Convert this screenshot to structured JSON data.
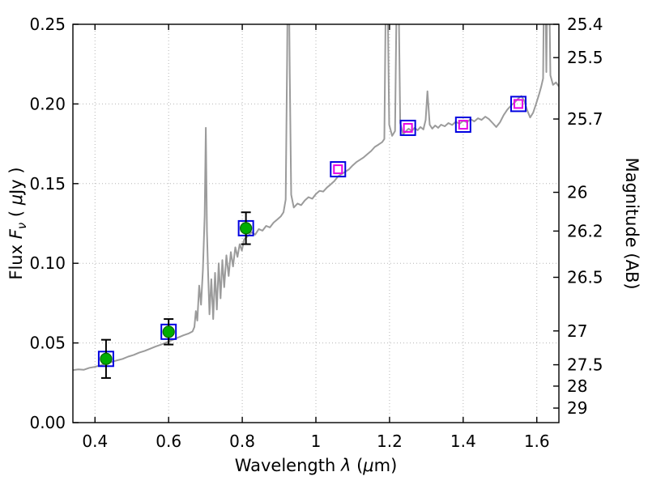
{
  "chart_data": {
    "type": "line",
    "title": "",
    "xlabel_parts": [
      {
        "t": "Wavelength  ",
        "s": "n"
      },
      {
        "t": "λ",
        "s": "i"
      },
      {
        "t": " (",
        "s": "n"
      },
      {
        "t": "μ",
        "s": "i"
      },
      {
        "t": "m)",
        "s": "n"
      }
    ],
    "ylabel_left_parts": [
      {
        "t": "Flux  ",
        "s": "n"
      },
      {
        "t": "F",
        "s": "i"
      },
      {
        "t": "ν",
        "s": "sub"
      },
      {
        "t": "  ( ",
        "s": "n"
      },
      {
        "t": "μ",
        "s": "i"
      },
      {
        "t": "Jy )",
        "s": "n"
      }
    ],
    "ylabel_right_parts": [
      {
        "t": "Magnitude (AB)",
        "s": "n"
      }
    ],
    "xlim": [
      0.34,
      1.66
    ],
    "ylim": [
      0,
      0.25
    ],
    "grid": "dotted",
    "x_ticks": [
      0.4,
      0.6,
      0.8,
      1.0,
      1.2,
      1.4,
      1.6
    ],
    "x_tick_labels": [
      "0.4",
      "0.6",
      "0.8",
      "1",
      "1.2",
      "1.4",
      "1.6"
    ],
    "y_ticks_left": [
      0.0,
      0.05,
      0.1,
      0.15,
      0.2,
      0.25
    ],
    "y_tick_labels_left": [
      "0.00",
      "0.05",
      "0.10",
      "0.15",
      "0.20",
      "0.25"
    ],
    "y_ticks_right_mag": [
      25.4,
      25.5,
      25.7,
      26,
      26.2,
      26.5,
      27,
      27.5,
      28,
      29
    ],
    "y_tick_labels_right": [
      "25.4",
      "25.5",
      "25.7",
      "26",
      "26.2",
      "26.5",
      "27",
      "27.5",
      "28",
      "29"
    ],
    "colors": {
      "spectrum": "#9b9b9b",
      "detection_fill": "#00ad00",
      "detection_edge": "#006600",
      "square_edge": "#0000e0",
      "inner_square_edge": "#e600e6",
      "error_bar": "#000000",
      "grid": "#b5b5b5",
      "frame": "#000000"
    },
    "photometry": [
      {
        "wavelength": 0.43,
        "flux": 0.04,
        "err": 0.012,
        "kind": "detection"
      },
      {
        "wavelength": 0.6,
        "flux": 0.057,
        "err": 0.008,
        "kind": "detection"
      },
      {
        "wavelength": 0.81,
        "flux": 0.122,
        "err": 0.01,
        "kind": "detection"
      },
      {
        "wavelength": 1.06,
        "flux": 0.159,
        "kind": "model"
      },
      {
        "wavelength": 1.25,
        "flux": 0.185,
        "kind": "model"
      },
      {
        "wavelength": 1.4,
        "flux": 0.187,
        "kind": "model"
      },
      {
        "wavelength": 1.55,
        "flux": 0.2,
        "kind": "model"
      }
    ],
    "spectrum_points": [
      [
        0.34,
        0.033
      ],
      [
        0.355,
        0.0334
      ],
      [
        0.37,
        0.0332
      ],
      [
        0.385,
        0.0344
      ],
      [
        0.4,
        0.035
      ],
      [
        0.415,
        0.036
      ],
      [
        0.43,
        0.0371
      ],
      [
        0.445,
        0.038
      ],
      [
        0.46,
        0.0391
      ],
      [
        0.475,
        0.04
      ],
      [
        0.49,
        0.0414
      ],
      [
        0.505,
        0.0425
      ],
      [
        0.52,
        0.0439
      ],
      [
        0.535,
        0.045
      ],
      [
        0.55,
        0.0464
      ],
      [
        0.565,
        0.0478
      ],
      [
        0.58,
        0.049
      ],
      [
        0.595,
        0.0504
      ],
      [
        0.61,
        0.0519
      ],
      [
        0.625,
        0.0533
      ],
      [
        0.64,
        0.0548
      ],
      [
        0.655,
        0.056
      ],
      [
        0.665,
        0.0572
      ],
      [
        0.67,
        0.06
      ],
      [
        0.674,
        0.07
      ],
      [
        0.678,
        0.064
      ],
      [
        0.683,
        0.086
      ],
      [
        0.688,
        0.074
      ],
      [
        0.693,
        0.096
      ],
      [
        0.698,
        0.13
      ],
      [
        0.701,
        0.185
      ],
      [
        0.704,
        0.12
      ],
      [
        0.707,
        0.096
      ],
      [
        0.711,
        0.068
      ],
      [
        0.716,
        0.09
      ],
      [
        0.721,
        0.065
      ],
      [
        0.726,
        0.094
      ],
      [
        0.731,
        0.071
      ],
      [
        0.736,
        0.1
      ],
      [
        0.741,
        0.078
      ],
      [
        0.746,
        0.102
      ],
      [
        0.751,
        0.085
      ],
      [
        0.757,
        0.105
      ],
      [
        0.763,
        0.092
      ],
      [
        0.769,
        0.107
      ],
      [
        0.775,
        0.098
      ],
      [
        0.781,
        0.11
      ],
      [
        0.787,
        0.104
      ],
      [
        0.793,
        0.112
      ],
      [
        0.799,
        0.108
      ],
      [
        0.805,
        0.115
      ],
      [
        0.815,
        0.117
      ],
      [
        0.825,
        0.1195
      ],
      [
        0.835,
        0.118
      ],
      [
        0.845,
        0.1215
      ],
      [
        0.855,
        0.1205
      ],
      [
        0.865,
        0.1235
      ],
      [
        0.875,
        0.1225
      ],
      [
        0.885,
        0.1255
      ],
      [
        0.895,
        0.1275
      ],
      [
        0.905,
        0.1295
      ],
      [
        0.912,
        0.132
      ],
      [
        0.918,
        0.14
      ],
      [
        0.922,
        0.23
      ],
      [
        0.925,
        0.32
      ],
      [
        0.929,
        0.22
      ],
      [
        0.933,
        0.143
      ],
      [
        0.94,
        0.135
      ],
      [
        0.95,
        0.1375
      ],
      [
        0.96,
        0.1365
      ],
      [
        0.97,
        0.1395
      ],
      [
        0.98,
        0.1415
      ],
      [
        0.99,
        0.1405
      ],
      [
        1.0,
        0.1435
      ],
      [
        1.01,
        0.1455
      ],
      [
        1.02,
        0.145
      ],
      [
        1.03,
        0.1475
      ],
      [
        1.04,
        0.1495
      ],
      [
        1.05,
        0.1515
      ],
      [
        1.06,
        0.1545
      ],
      [
        1.07,
        0.156
      ],
      [
        1.08,
        0.1575
      ],
      [
        1.09,
        0.159
      ],
      [
        1.1,
        0.1615
      ],
      [
        1.11,
        0.1635
      ],
      [
        1.12,
        0.165
      ],
      [
        1.13,
        0.1665
      ],
      [
        1.14,
        0.1685
      ],
      [
        1.15,
        0.1705
      ],
      [
        1.16,
        0.173
      ],
      [
        1.17,
        0.1745
      ],
      [
        1.18,
        0.176
      ],
      [
        1.186,
        0.178
      ],
      [
        1.192,
        0.32
      ],
      [
        1.199,
        0.187
      ],
      [
        1.207,
        0.18
      ],
      [
        1.215,
        0.183
      ],
      [
        1.222,
        0.32
      ],
      [
        1.229,
        0.188
      ],
      [
        1.237,
        0.181
      ],
      [
        1.245,
        0.183
      ],
      [
        1.252,
        0.1845
      ],
      [
        1.26,
        0.183
      ],
      [
        1.268,
        0.185
      ],
      [
        1.276,
        0.1835
      ],
      [
        1.284,
        0.1855
      ],
      [
        1.292,
        0.184
      ],
      [
        1.298,
        0.19
      ],
      [
        1.303,
        0.208
      ],
      [
        1.309,
        0.187
      ],
      [
        1.316,
        0.1845
      ],
      [
        1.324,
        0.1865
      ],
      [
        1.332,
        0.185
      ],
      [
        1.34,
        0.187
      ],
      [
        1.35,
        0.186
      ],
      [
        1.36,
        0.188
      ],
      [
        1.37,
        0.1868
      ],
      [
        1.38,
        0.1888
      ],
      [
        1.39,
        0.1875
      ],
      [
        1.4,
        0.1895
      ],
      [
        1.41,
        0.1885
      ],
      [
        1.42,
        0.1905
      ],
      [
        1.43,
        0.189
      ],
      [
        1.44,
        0.191
      ],
      [
        1.45,
        0.19
      ],
      [
        1.46,
        0.192
      ],
      [
        1.47,
        0.1905
      ],
      [
        1.48,
        0.188
      ],
      [
        1.49,
        0.1855
      ],
      [
        1.5,
        0.1885
      ],
      [
        1.51,
        0.193
      ],
      [
        1.52,
        0.1965
      ],
      [
        1.53,
        0.199
      ],
      [
        1.54,
        0.201
      ],
      [
        1.55,
        0.2035
      ],
      [
        1.558,
        0.205
      ],
      [
        1.566,
        0.202
      ],
      [
        1.574,
        0.196
      ],
      [
        1.582,
        0.1915
      ],
      [
        1.59,
        0.1945
      ],
      [
        1.598,
        0.2
      ],
      [
        1.606,
        0.206
      ],
      [
        1.612,
        0.211
      ],
      [
        1.617,
        0.216
      ],
      [
        1.621,
        0.32
      ],
      [
        1.626,
        0.22
      ],
      [
        1.631,
        0.32
      ],
      [
        1.637,
        0.218
      ],
      [
        1.644,
        0.212
      ],
      [
        1.652,
        0.2135
      ],
      [
        1.66,
        0.211
      ]
    ]
  }
}
